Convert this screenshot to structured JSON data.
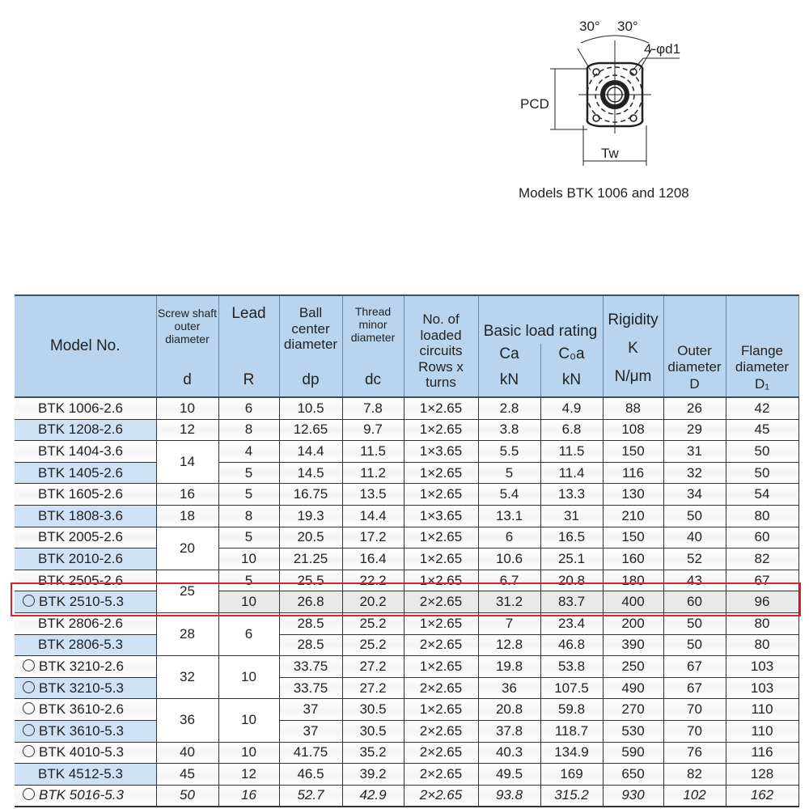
{
  "figure": {
    "angle_left": "30°",
    "angle_right": "30°",
    "hole_label": "4-φd1",
    "pcd_label": "PCD",
    "tw_label": "Tw",
    "caption": "Models BTK 1006 and 1208"
  },
  "table": {
    "headers": {
      "model": "Model No.",
      "d_title": "Screw shaft outer diameter",
      "d_sym": "d",
      "r_title": "Lead",
      "r_sym": "R",
      "dp_title": "Ball center diameter",
      "dp_sym": "dp",
      "dc_title": "Thread minor diameter",
      "dc_sym": "dc",
      "circ_title": "No. of loaded circuits",
      "circ_sub": "Rows x turns",
      "load_title": "Basic load rating",
      "ca_sym": "Ca",
      "ca_unit": "kN",
      "coa_sym": "C₀a",
      "coa_unit": "kN",
      "k_title": "Rigidity",
      "k_sym": "K",
      "k_unit": "N/μm",
      "D_title": "Outer diameter",
      "D_sym": "D",
      "D1_title": "Flange diameter",
      "D1_sym": "D₁"
    },
    "highlight_color": "#d9262c",
    "rows": [
      {
        "circle": false,
        "model": "BTK 1006-2.6",
        "d": "10",
        "R": "6",
        "dp": "10.5",
        "dc": "7.8",
        "circuits": "1×2.65",
        "Ca": "2.8",
        "C0a": "4.9",
        "K": "88",
        "D": "26",
        "D1": "42"
      },
      {
        "circle": false,
        "model": "BTK 1208-2.6",
        "d": "12",
        "R": "8",
        "dp": "12.65",
        "dc": "9.7",
        "circuits": "1×2.65",
        "Ca": "3.8",
        "C0a": "6.8",
        "K": "108",
        "D": "29",
        "D1": "45"
      },
      {
        "circle": false,
        "model": "BTK 1404-3.6",
        "d": "14",
        "R": "4",
        "dp": "14.4",
        "dc": "11.5",
        "circuits": "1×3.65",
        "Ca": "5.5",
        "C0a": "11.5",
        "K": "150",
        "D": "31",
        "D1": "50"
      },
      {
        "circle": false,
        "model": "BTK 1405-2.6",
        "d": null,
        "R": "5",
        "dp": "14.5",
        "dc": "11.2",
        "circuits": "1×2.65",
        "Ca": "5",
        "C0a": "11.4",
        "K": "116",
        "D": "32",
        "D1": "50"
      },
      {
        "circle": false,
        "model": "BTK 1605-2.6",
        "d": "16",
        "R": "5",
        "dp": "16.75",
        "dc": "13.5",
        "circuits": "1×2.65",
        "Ca": "5.4",
        "C0a": "13.3",
        "K": "130",
        "D": "34",
        "D1": "54"
      },
      {
        "circle": false,
        "model": "BTK 1808-3.6",
        "d": "18",
        "R": "8",
        "dp": "19.3",
        "dc": "14.4",
        "circuits": "1×3.65",
        "Ca": "13.1",
        "C0a": "31",
        "K": "210",
        "D": "50",
        "D1": "80"
      },
      {
        "circle": false,
        "model": "BTK 2005-2.6",
        "d": "20",
        "R": "5",
        "dp": "20.5",
        "dc": "17.2",
        "circuits": "1×2.65",
        "Ca": "6",
        "C0a": "16.5",
        "K": "150",
        "D": "40",
        "D1": "60"
      },
      {
        "circle": false,
        "model": "BTK 2010-2.6",
        "d": null,
        "R": "10",
        "dp": "21.25",
        "dc": "16.4",
        "circuits": "1×2.65",
        "Ca": "10.6",
        "C0a": "25.1",
        "K": "160",
        "D": "52",
        "D1": "82"
      },
      {
        "circle": false,
        "model": "BTK 2505-2.6",
        "d": "25",
        "R": "5",
        "dp": "25.5",
        "dc": "22.2",
        "circuits": "1×2.65",
        "Ca": "6.7",
        "C0a": "20.8",
        "K": "180",
        "D": "43",
        "D1": "67"
      },
      {
        "circle": true,
        "highlighted": true,
        "model": "BTK 2510-5.3",
        "d": null,
        "R": "10",
        "dp": "26.8",
        "dc": "20.2",
        "circuits": "2×2.65",
        "Ca": "31.2",
        "C0a": "83.7",
        "K": "400",
        "D": "60",
        "D1": "96"
      },
      {
        "circle": false,
        "model": "BTK 2806-2.6",
        "d": "28",
        "R": "6",
        "dp": "28.5",
        "dc": "25.2",
        "circuits": "1×2.65",
        "Ca": "7",
        "C0a": "23.4",
        "K": "200",
        "D": "50",
        "D1": "80"
      },
      {
        "circle": false,
        "model": "BTK 2806-5.3",
        "d": null,
        "R": null,
        "dp": "28.5",
        "dc": "25.2",
        "circuits": "2×2.65",
        "Ca": "12.8",
        "C0a": "46.8",
        "K": "390",
        "D": "50",
        "D1": "80"
      },
      {
        "circle": true,
        "model": "BTK 3210-2.6",
        "d": "32",
        "R": "10",
        "dp": "33.75",
        "dc": "27.2",
        "circuits": "1×2.65",
        "Ca": "19.8",
        "C0a": "53.8",
        "K": "250",
        "D": "67",
        "D1": "103"
      },
      {
        "circle": true,
        "model": "BTK 3210-5.3",
        "d": null,
        "R": null,
        "dp": "33.75",
        "dc": "27.2",
        "circuits": "2×2.65",
        "Ca": "36",
        "C0a": "107.5",
        "K": "490",
        "D": "67",
        "D1": "103"
      },
      {
        "circle": true,
        "model": "BTK 3610-2.6",
        "d": "36",
        "R": "10",
        "dp": "37",
        "dc": "30.5",
        "circuits": "1×2.65",
        "Ca": "20.8",
        "C0a": "59.8",
        "K": "270",
        "D": "70",
        "D1": "110"
      },
      {
        "circle": true,
        "model": "BTK 3610-5.3",
        "d": null,
        "R": null,
        "dp": "37",
        "dc": "30.5",
        "circuits": "2×2.65",
        "Ca": "37.8",
        "C0a": "118.7",
        "K": "530",
        "D": "70",
        "D1": "110"
      },
      {
        "circle": true,
        "model": "BTK 4010-5.3",
        "d": "40",
        "R": "10",
        "dp": "41.75",
        "dc": "35.2",
        "circuits": "2×2.65",
        "Ca": "40.3",
        "C0a": "134.9",
        "K": "590",
        "D": "76",
        "D1": "116"
      },
      {
        "circle": false,
        "model": "BTK 4512-5.3",
        "d": "45",
        "R": "12",
        "dp": "46.5",
        "dc": "39.2",
        "circuits": "2×2.65",
        "Ca": "49.5",
        "C0a": "169",
        "K": "650",
        "D": "82",
        "D1": "128"
      },
      {
        "circle": true,
        "italic": true,
        "model": "BTK 5016-5.3",
        "d": "50",
        "R": "16",
        "dp": "52.7",
        "dc": "42.9",
        "circuits": "2×2.65",
        "Ca": "93.8",
        "C0a": "315.2",
        "K": "930",
        "D": "102",
        "D1": "162"
      }
    ]
  }
}
